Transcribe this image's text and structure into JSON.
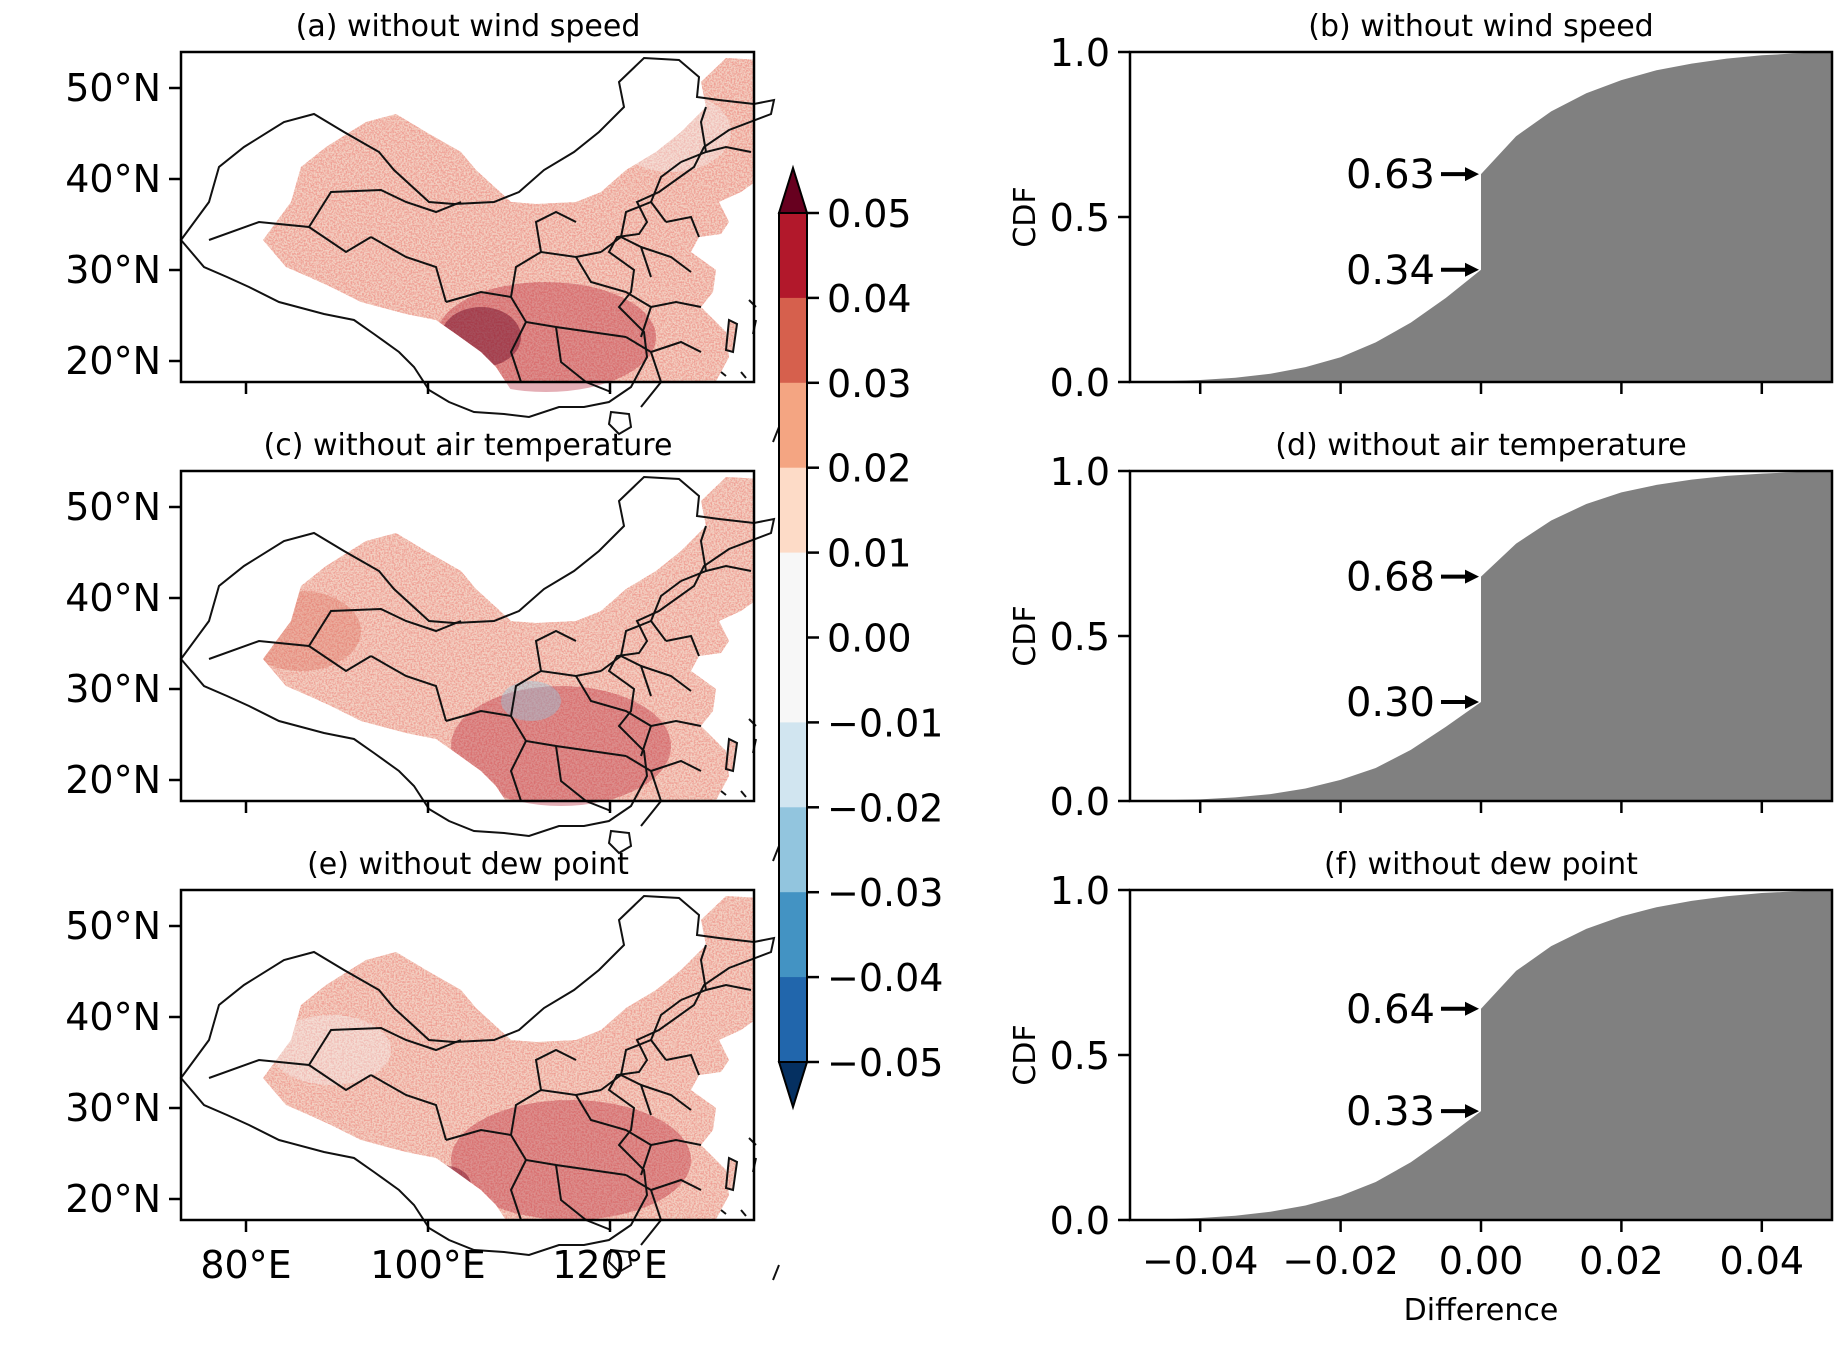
{
  "colorbar": {
    "ticks": [
      "0.05",
      "0.04",
      "0.03",
      "0.02",
      "0.01",
      "0.00",
      "−0.01",
      "−0.02",
      "−0.03",
      "−0.04",
      "−0.05"
    ],
    "colors": [
      "#67001f",
      "#b2182b",
      "#d6604d",
      "#f4a582",
      "#fddbc7",
      "#f7f7f7",
      "#d1e5f0",
      "#92c5de",
      "#4393c3",
      "#2166ac",
      "#053061"
    ]
  },
  "map_panels": [
    {
      "title": "(a) without wind speed"
    },
    {
      "title": "(c) without air temperature"
    },
    {
      "title": "(e) without dew point"
    }
  ],
  "map_axes": {
    "lat_ticks": [
      "50°N",
      "40°N",
      "30°N",
      "20°N"
    ],
    "lon_ticks": [
      "80°E",
      "100°E",
      "120°E"
    ]
  },
  "cdf_axes": {
    "ylabel": "CDF",
    "xlabel": "Difference",
    "y_ticks": [
      "1.0",
      "0.5",
      "0.0"
    ],
    "x_ticks": [
      "−0.04",
      "−0.02",
      "0.00",
      "0.02",
      "0.04"
    ]
  },
  "chart_data": [
    {
      "type": "area",
      "title": "(b) without wind speed",
      "xlabel": "",
      "ylabel": "CDF",
      "xlim": [
        -0.05,
        0.05
      ],
      "ylim": [
        0,
        1
      ],
      "fill_color": "#808080",
      "annotations": [
        {
          "label": "0.34",
          "y": 0.34
        },
        {
          "label": "0.63",
          "y": 0.63
        }
      ],
      "x": [
        -0.05,
        -0.045,
        -0.04,
        -0.035,
        -0.03,
        -0.025,
        -0.02,
        -0.015,
        -0.01,
        -0.005,
        0.0,
        0.0,
        0.005,
        0.01,
        0.015,
        0.02,
        0.025,
        0.03,
        0.035,
        0.04,
        0.045,
        0.05
      ],
      "y": [
        0.0,
        0.002,
        0.006,
        0.013,
        0.025,
        0.045,
        0.075,
        0.12,
        0.18,
        0.255,
        0.34,
        0.63,
        0.745,
        0.82,
        0.875,
        0.915,
        0.945,
        0.965,
        0.98,
        0.99,
        0.996,
        1.0
      ]
    },
    {
      "type": "area",
      "title": "(d) without air temperature",
      "xlabel": "",
      "ylabel": "CDF",
      "xlim": [
        -0.05,
        0.05
      ],
      "ylim": [
        0,
        1
      ],
      "fill_color": "#808080",
      "annotations": [
        {
          "label": "0.30",
          "y": 0.3
        },
        {
          "label": "0.68",
          "y": 0.68
        }
      ],
      "x": [
        -0.05,
        -0.045,
        -0.04,
        -0.035,
        -0.03,
        -0.025,
        -0.02,
        -0.015,
        -0.01,
        -0.005,
        0.0,
        0.0,
        0.005,
        0.01,
        0.015,
        0.02,
        0.025,
        0.03,
        0.035,
        0.04,
        0.045,
        0.05
      ],
      "y": [
        0.0,
        0.002,
        0.005,
        0.011,
        0.021,
        0.038,
        0.064,
        0.1,
        0.155,
        0.225,
        0.3,
        0.68,
        0.78,
        0.85,
        0.9,
        0.935,
        0.958,
        0.974,
        0.985,
        0.992,
        0.997,
        1.0
      ]
    },
    {
      "type": "area",
      "title": "(f) without dew point",
      "xlabel": "Difference",
      "ylabel": "CDF",
      "xlim": [
        -0.05,
        0.05
      ],
      "ylim": [
        0,
        1
      ],
      "fill_color": "#808080",
      "annotations": [
        {
          "label": "0.33",
          "y": 0.33
        },
        {
          "label": "0.64",
          "y": 0.64
        }
      ],
      "x": [
        -0.05,
        -0.045,
        -0.04,
        -0.035,
        -0.03,
        -0.025,
        -0.02,
        -0.015,
        -0.01,
        -0.005,
        0.0,
        0.0,
        0.005,
        0.01,
        0.015,
        0.02,
        0.025,
        0.03,
        0.035,
        0.04,
        0.045,
        0.05
      ],
      "y": [
        0.0,
        0.002,
        0.006,
        0.013,
        0.025,
        0.044,
        0.073,
        0.115,
        0.175,
        0.25,
        0.33,
        0.64,
        0.755,
        0.83,
        0.882,
        0.92,
        0.948,
        0.967,
        0.981,
        0.991,
        0.996,
        1.0
      ]
    }
  ]
}
